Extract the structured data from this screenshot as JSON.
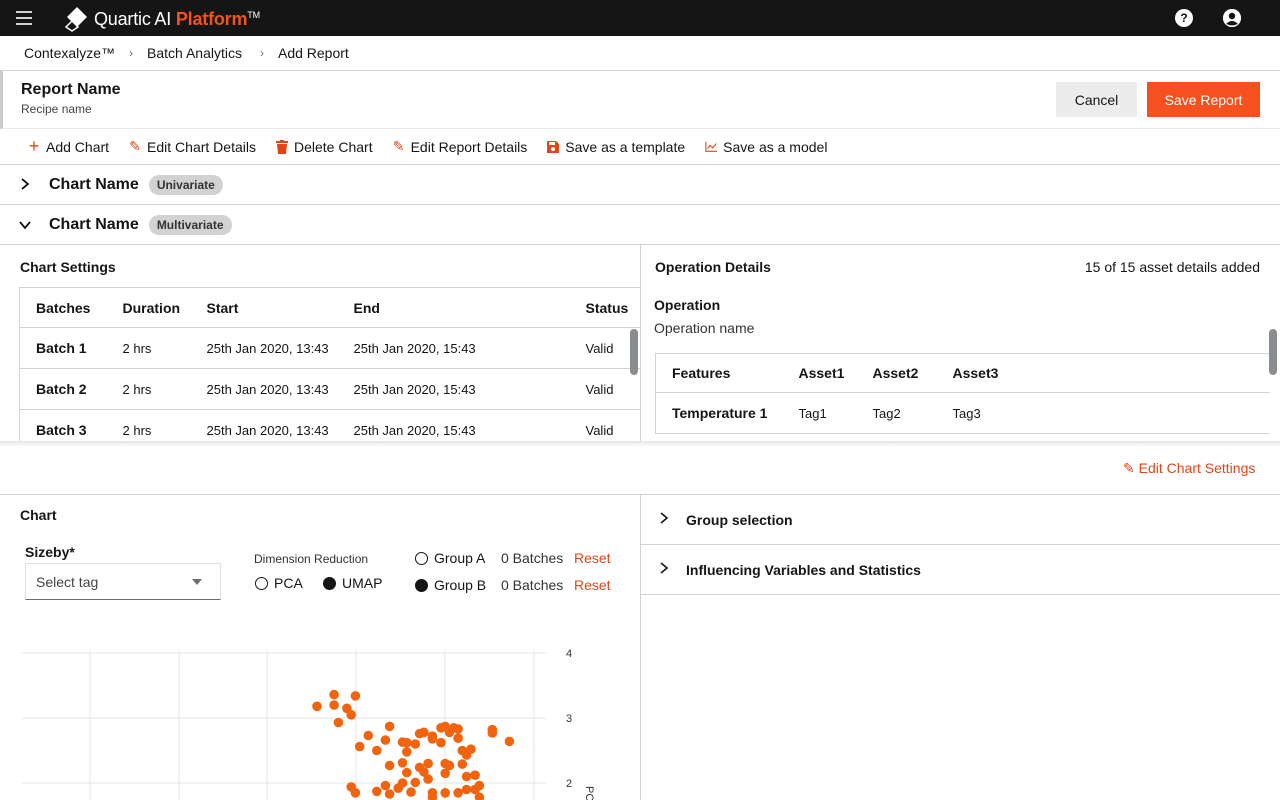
{
  "app": {
    "brand_name": "Quartic AI",
    "brand_accent": "Platform",
    "brand_tm": "TM",
    "brand_color": "#f4511e"
  },
  "breadcrumb": [
    "Contexalyze™",
    "Batch Analytics",
    "Add Report"
  ],
  "report": {
    "title": "Report Name",
    "subtitle": "Recipe name",
    "cancel_label": "Cancel",
    "save_label": "Save Report"
  },
  "toolbar": {
    "add_chart": "Add Chart",
    "edit_chart_details": "Edit Chart Details",
    "delete_chart": "Delete Chart",
    "edit_report_details": "Edit Report Details",
    "save_template": "Save as a template",
    "save_model": "Save as a model"
  },
  "charts": [
    {
      "name": "Chart Name",
      "badge": "Univariate",
      "expanded": false
    },
    {
      "name": "Chart Name",
      "badge": "Multivariate",
      "expanded": true
    }
  ],
  "chart_settings": {
    "heading": "Chart Settings",
    "columns": [
      "Batches",
      "Duration",
      "Start",
      "End",
      "Status"
    ],
    "rows": [
      [
        "Batch 1",
        "2 hrs",
        "25th Jan 2020, 13:43",
        "25th Jan 2020, 15:43",
        "Valid"
      ],
      [
        "Batch 2",
        "2 hrs",
        "25th Jan 2020, 13:43",
        "25th Jan 2020, 15:43",
        "Valid"
      ],
      [
        "Batch 3",
        "2 hrs",
        "25th Jan 2020, 13:43",
        "25th Jan 2020, 15:43",
        "Valid"
      ]
    ]
  },
  "operation_details": {
    "heading": "Operation Details",
    "count_text": "15 of 15 asset details added",
    "operation_label": "Operation",
    "operation_value": "Operation name",
    "columns": [
      "Features",
      "Asset1",
      "Asset2",
      "Asset3"
    ],
    "rows": [
      [
        "Temperature 1",
        "Tag1",
        "Tag2",
        "Tag3"
      ]
    ]
  },
  "edit_chart_settings": "Edit Chart Settings",
  "chart_section": {
    "heading": "Chart",
    "sizeby_label": "Sizeby*",
    "sizeby_placeholder": "Select tag",
    "dim_reduction_label": "Dimension Reduction",
    "pca_label": "PCA",
    "umap_label": "UMAP",
    "selected_reduction": "UMAP",
    "group_a": {
      "label": "Group A",
      "count": "0 Batches",
      "reset": "Reset"
    },
    "group_b": {
      "label": "Group B",
      "count": "0 Batches",
      "reset": "Reset"
    }
  },
  "right_accordions": [
    "Group selection",
    "Influencing Variables and Statistics"
  ],
  "chart_data": {
    "type": "scatter",
    "title": "",
    "xlabel": "",
    "ylabel": "PC",
    "y_ticks": [
      4,
      3,
      2
    ],
    "ylim": [
      1.7,
      4
    ],
    "xlim": [
      0,
      12
    ],
    "point_color": "#f06410",
    "grid": true,
    "points": [
      [
        6.9,
        3.18
      ],
      [
        7.3,
        3.36
      ],
      [
        7.3,
        3.2
      ],
      [
        7.8,
        3.34
      ],
      [
        7.6,
        3.15
      ],
      [
        7.7,
        3.05
      ],
      [
        7.4,
        2.93
      ],
      [
        8.1,
        2.73
      ],
      [
        8.6,
        2.87
      ],
      [
        8.5,
        2.66
      ],
      [
        7.9,
        2.56
      ],
      [
        8.3,
        2.5
      ],
      [
        8.9,
        2.63
      ],
      [
        9.0,
        2.62
      ],
      [
        9.2,
        2.6
      ],
      [
        9.0,
        2.48
      ],
      [
        9.4,
        2.78
      ],
      [
        9.3,
        2.76
      ],
      [
        9.6,
        2.72
      ],
      [
        9.8,
        2.85
      ],
      [
        9.9,
        2.87
      ],
      [
        9.8,
        2.62
      ],
      [
        9.6,
        2.68
      ],
      [
        10.1,
        2.85
      ],
      [
        10.2,
        2.83
      ],
      [
        10.0,
        2.78
      ],
      [
        10.2,
        2.69
      ],
      [
        10.3,
        2.5
      ],
      [
        10.4,
        2.43
      ],
      [
        10.5,
        2.52
      ],
      [
        11.0,
        2.82
      ],
      [
        11.0,
        2.77
      ],
      [
        11.4,
        2.64
      ],
      [
        8.6,
        2.27
      ],
      [
        8.9,
        2.31
      ],
      [
        9.0,
        2.16
      ],
      [
        9.3,
        2.24
      ],
      [
        9.5,
        2.3
      ],
      [
        9.5,
        2.06
      ],
      [
        9.2,
        2.01
      ],
      [
        8.9,
        2.0
      ],
      [
        8.5,
        1.96
      ],
      [
        9.4,
        2.17
      ],
      [
        9.9,
        2.3
      ],
      [
        9.9,
        2.15
      ],
      [
        10.0,
        2.27
      ],
      [
        10.3,
        2.29
      ],
      [
        10.4,
        2.1
      ],
      [
        10.6,
        2.12
      ],
      [
        10.7,
        1.96
      ],
      [
        10.4,
        1.9
      ],
      [
        10.2,
        1.85
      ],
      [
        9.6,
        1.85
      ],
      [
        9.9,
        1.85
      ],
      [
        10.6,
        1.9
      ],
      [
        9.1,
        1.86
      ],
      [
        8.8,
        1.92
      ],
      [
        8.6,
        1.83
      ],
      [
        8.3,
        1.87
      ],
      [
        7.7,
        1.94
      ],
      [
        7.8,
        1.85
      ],
      [
        10.7,
        1.78
      ],
      [
        9.6,
        1.78
      ]
    ]
  }
}
